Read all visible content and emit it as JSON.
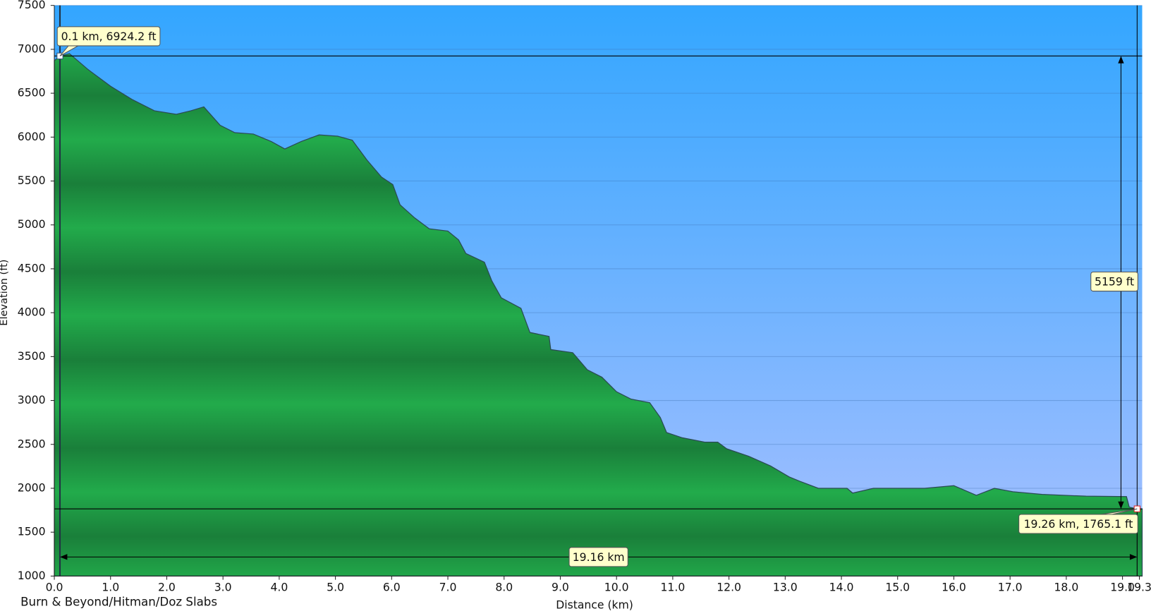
{
  "chart_data": {
    "type": "area",
    "title": "Burn & Beyond/Hitman/Doz Slabs",
    "x_label": "Distance   (km)",
    "y_label": "Elevation (ft)",
    "x": [
      0,
      0.1,
      0.27,
      0.6,
      1.0,
      1.38,
      1.78,
      2.17,
      2.43,
      2.66,
      2.95,
      3.21,
      3.54,
      3.86,
      4.1,
      4.39,
      4.71,
      5.04,
      5.3,
      5.56,
      5.82,
      6.02,
      6.15,
      6.41,
      6.67,
      7.0,
      7.19,
      7.32,
      7.65,
      7.78,
      7.95,
      8.3,
      8.46,
      8.8,
      8.83,
      9.22,
      9.48,
      9.74,
      10.0,
      10.26,
      10.59,
      10.78,
      10.89,
      11.17,
      11.57,
      11.8,
      11.96,
      12.35,
      12.74,
      13.07,
      13.26,
      13.59,
      14.1,
      14.2,
      14.57,
      15.48,
      16.0,
      16.4,
      16.72,
      17.05,
      17.57,
      18.35,
      19.07,
      19.12,
      19.26
    ],
    "values": [
      6870,
      6924.2,
      6950,
      6770,
      6580,
      6430,
      6300,
      6260,
      6300,
      6345,
      6135,
      6050,
      6035,
      5950,
      5865,
      5950,
      6025,
      6010,
      5965,
      5740,
      5545,
      5460,
      5230,
      5080,
      4955,
      4930,
      4830,
      4675,
      4575,
      4365,
      4170,
      4050,
      3775,
      3730,
      3580,
      3545,
      3350,
      3265,
      3100,
      3015,
      2975,
      2805,
      2635,
      2575,
      2525,
      2525,
      2450,
      2365,
      2255,
      2130,
      2080,
      2000,
      2000,
      1945,
      2000,
      2000,
      2030,
      1920,
      2000,
      1960,
      1930,
      1910,
      1905,
      1785,
      1765.1
    ],
    "color": "#1fa446",
    "xlim": [
      0,
      19.35
    ],
    "ylim": [
      1000,
      7500
    ],
    "xticks": [
      {
        "value": 0,
        "label": "0.0"
      },
      {
        "value": 1,
        "label": "1.0"
      },
      {
        "value": 2,
        "label": "2.0"
      },
      {
        "value": 3,
        "label": "3.0"
      },
      {
        "value": 4,
        "label": "4.0"
      },
      {
        "value": 5,
        "label": "5.0"
      },
      {
        "value": 6,
        "label": "6.0"
      },
      {
        "value": 7,
        "label": "7.0"
      },
      {
        "value": 8,
        "label": "8.0"
      },
      {
        "value": 9,
        "label": "9.0"
      },
      {
        "value": 10,
        "label": "10.0"
      },
      {
        "value": 11,
        "label": "11.0"
      },
      {
        "value": 12,
        "label": "12.0"
      },
      {
        "value": 13,
        "label": "13.0"
      },
      {
        "value": 14,
        "label": "14.0"
      },
      {
        "value": 15,
        "label": "15.0"
      },
      {
        "value": 16,
        "label": "16.0"
      },
      {
        "value": 17,
        "label": "17.0"
      },
      {
        "value": 18,
        "label": "18.0"
      },
      {
        "value": 19,
        "label": "19.0"
      },
      19.3
    ],
    "yticks": [
      1000,
      1500,
      2000,
      2500,
      3000,
      3500,
      4000,
      4500,
      5000,
      5500,
      6000,
      6500,
      7000,
      7500
    ],
    "grid": true,
    "annotations": [
      {
        "x": 0.1,
        "y": 6924.2,
        "label": "0.1 km, 6924.2 ft"
      },
      {
        "x": 19.26,
        "y": 1765.1,
        "label": "19.26 km, 1765.1 ft"
      }
    ],
    "measures": {
      "height": "5159 ft",
      "distance": "19.16 km"
    }
  }
}
